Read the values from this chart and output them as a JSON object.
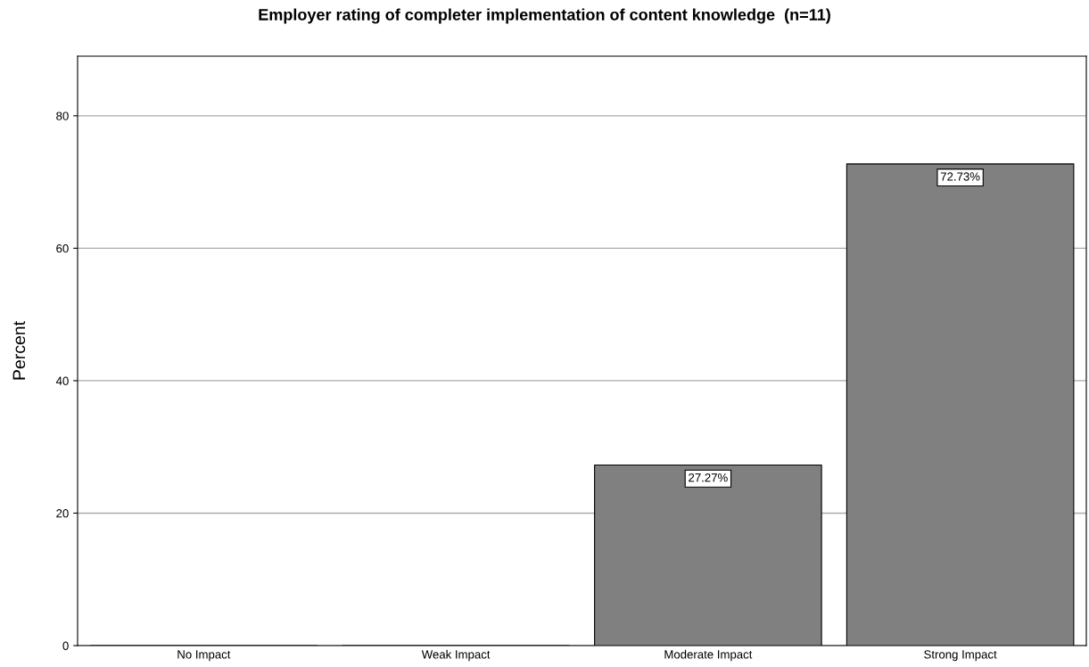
{
  "chart_data": {
    "type": "bar",
    "title": "Employer rating of completer implementation of content knowledge  (n=11)",
    "ylabel": "Percent",
    "categories": [
      "No Impact",
      "Weak Impact",
      "Moderate Impact",
      "Strong Impact"
    ],
    "values": [
      0,
      0,
      27.27,
      72.73
    ],
    "color": "#808080",
    "value_labels": [
      null,
      null,
      "27.27%",
      "72.73%"
    ],
    "ylim": [
      0,
      89
    ],
    "yticks": [
      0,
      20,
      40,
      60,
      80
    ],
    "grid": "y"
  }
}
